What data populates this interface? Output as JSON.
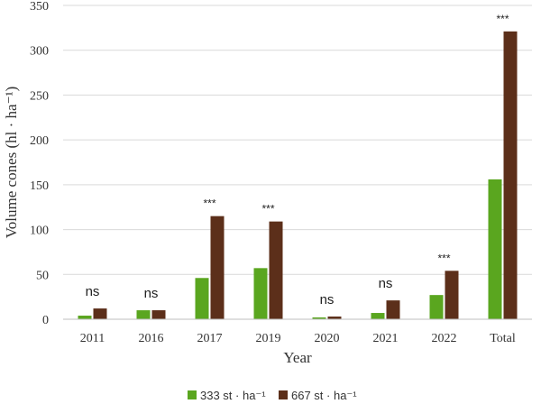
{
  "chart_data": {
    "type": "bar",
    "categories": [
      "2011",
      "2016",
      "2017",
      "2019",
      "2020",
      "2021",
      "2022",
      "Total"
    ],
    "series": [
      {
        "name": "333 st · ha⁻¹",
        "color": "#5aa61f",
        "values": [
          4,
          10,
          46,
          57,
          2,
          7,
          27,
          156
        ]
      },
      {
        "name": "667 st · ha⁻¹",
        "color": "#5c2f1a",
        "values": [
          12,
          10,
          115,
          109,
          3,
          21,
          54,
          321
        ]
      }
    ],
    "significance": [
      "ns",
      "ns",
      "***",
      "***",
      "ns",
      "ns",
      "***",
      "***"
    ],
    "title": "",
    "xlabel": "Year",
    "ylabel": "Volume cones (hl · ha⁻¹)",
    "ylim": [
      0,
      350
    ],
    "yticks": [
      0,
      50,
      100,
      150,
      200,
      250,
      300,
      350
    ],
    "grid": true,
    "legend_position": "bottom-center"
  }
}
